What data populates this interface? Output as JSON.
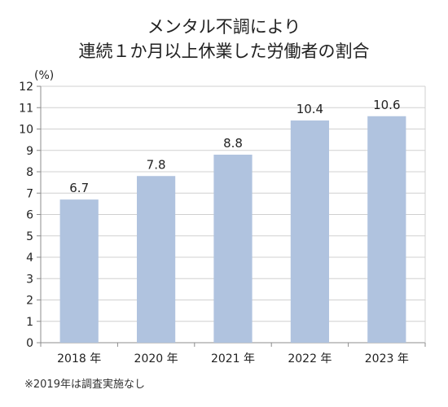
{
  "chart_data": {
    "type": "bar",
    "title_lines": [
      "メンタル不調により",
      "連続１か月以上休業した労働者の割合"
    ],
    "ylabel": "(%)",
    "xlabel": "",
    "categories": [
      "2018 年",
      "2020 年",
      "2021 年",
      "2022 年",
      "2023 年"
    ],
    "values": [
      6.7,
      7.8,
      8.8,
      10.4,
      10.6
    ],
    "data_labels": [
      "6.7",
      "7.8",
      "8.8",
      "10.4",
      "10.6"
    ],
    "ylim": [
      0,
      12
    ],
    "yticks": [
      "0",
      "1",
      "2",
      "3",
      "4",
      "5",
      "6",
      "7",
      "8",
      "9",
      "10",
      "11",
      "12"
    ],
    "grid": true,
    "legend": "none",
    "bar_color": "#b0c3df",
    "grid_color": "#d0d0d0",
    "axis_color": "#8c8c8c"
  },
  "footnote": "※2019年は調査実施なし"
}
